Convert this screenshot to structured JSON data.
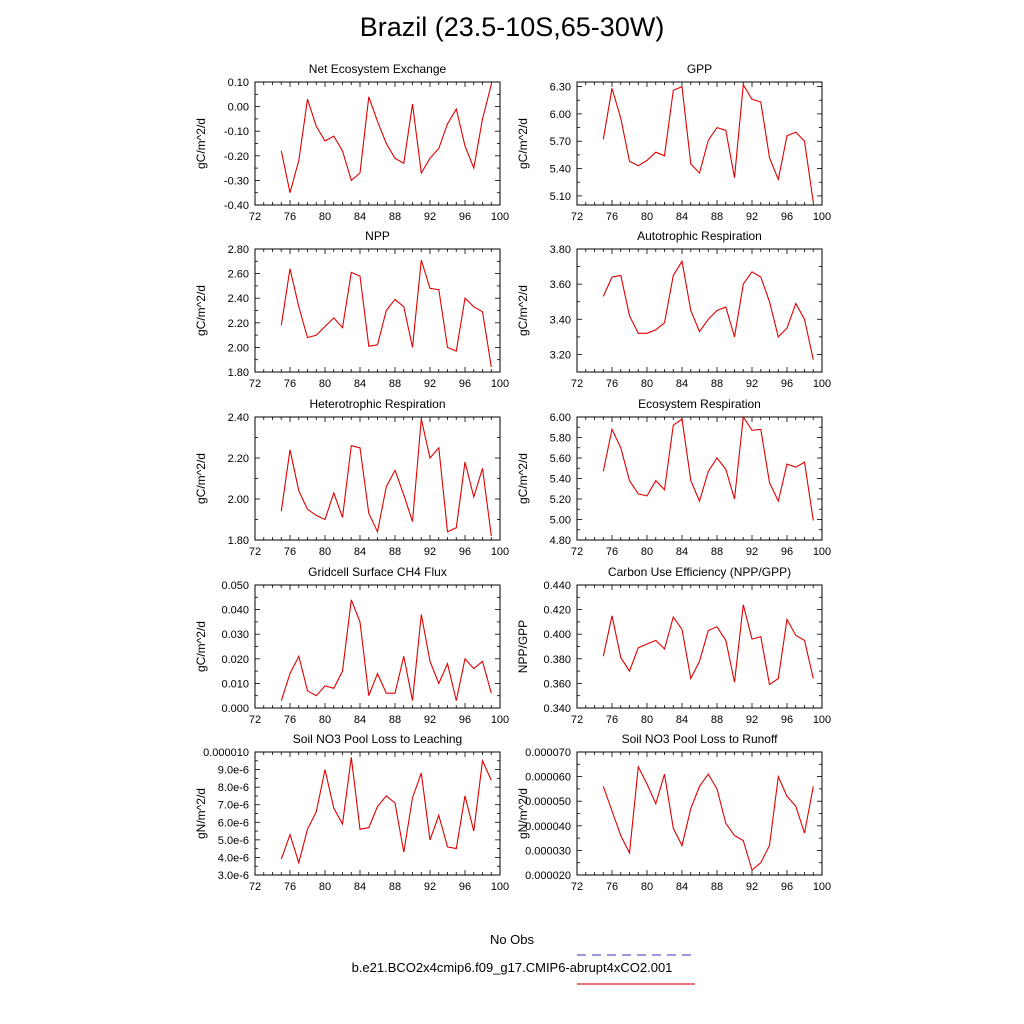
{
  "title": "Brazil (23.5-10S,65-30W)",
  "legend": {
    "entries": [
      {
        "label": "No Obs",
        "color": "#5a5ac8",
        "dash": true
      },
      {
        "label": "b.e21.BCO2x4cmip6.f09_g17.CMIP6-abrupt4xCO2.001",
        "color": "#e02020",
        "dash": false
      }
    ]
  },
  "colors": {
    "series": "#e00000",
    "axis": "#000000"
  },
  "chart_data": [
    {
      "type": "line",
      "title": "Net Ecosystem Exchange",
      "ylabel": "gC/m^2/d",
      "xlim": [
        72,
        100
      ],
      "xticks": [
        72,
        76,
        80,
        84,
        88,
        92,
        96,
        100
      ],
      "xtick_labels": [
        "72",
        "76",
        "80",
        "84",
        "88",
        "92",
        "96",
        "100"
      ],
      "ylim": [
        -0.4,
        0.1
      ],
      "yticks": [
        -0.4,
        -0.3,
        -0.2,
        -0.1,
        0.0,
        0.1
      ],
      "ytick_labels": [
        "-0.40",
        "-0.30",
        "-0.20",
        "-0.10",
        "0.00",
        "0.10"
      ],
      "x": [
        75,
        76,
        77,
        78,
        79,
        80,
        81,
        82,
        83,
        84,
        85,
        86,
        87,
        88,
        89,
        90,
        91,
        92,
        93,
        94,
        95,
        96,
        97,
        98,
        99
      ],
      "y": [
        -0.18,
        -0.35,
        -0.22,
        0.03,
        -0.08,
        -0.14,
        -0.12,
        -0.18,
        -0.3,
        -0.27,
        0.04,
        -0.06,
        -0.15,
        -0.21,
        -0.23,
        0.01,
        -0.27,
        -0.21,
        -0.17,
        -0.07,
        -0.01,
        -0.16,
        -0.25,
        -0.05,
        0.09
      ]
    },
    {
      "type": "line",
      "title": "GPP",
      "ylabel": "gC/m^2/d",
      "xlim": [
        72,
        100
      ],
      "xticks": [
        72,
        76,
        80,
        84,
        88,
        92,
        96,
        100
      ],
      "xtick_labels": [
        "72",
        "76",
        "80",
        "84",
        "88",
        "92",
        "96",
        "100"
      ],
      "ylim": [
        5.0,
        6.35
      ],
      "yticks": [
        5.1,
        5.4,
        5.7,
        6.0,
        6.3
      ],
      "ytick_labels": [
        "5.10",
        "5.40",
        "5.70",
        "6.00",
        "6.30"
      ],
      "x": [
        75,
        76,
        77,
        78,
        79,
        80,
        81,
        82,
        83,
        84,
        85,
        86,
        87,
        88,
        89,
        90,
        91,
        92,
        93,
        94,
        95,
        96,
        97,
        98,
        99
      ],
      "y": [
        5.72,
        6.28,
        5.95,
        5.48,
        5.43,
        5.49,
        5.58,
        5.54,
        6.26,
        6.3,
        5.45,
        5.35,
        5.71,
        5.85,
        5.82,
        5.3,
        6.32,
        6.16,
        6.13,
        5.52,
        5.28,
        5.76,
        5.8,
        5.7,
        5.03
      ]
    },
    {
      "type": "line",
      "title": "NPP",
      "ylabel": "gC/m^2/d",
      "xlim": [
        72,
        100
      ],
      "xticks": [
        72,
        76,
        80,
        84,
        88,
        92,
        96,
        100
      ],
      "xtick_labels": [
        "72",
        "76",
        "80",
        "84",
        "88",
        "92",
        "96",
        "100"
      ],
      "ylim": [
        1.8,
        2.8
      ],
      "yticks": [
        1.8,
        2.0,
        2.2,
        2.4,
        2.6,
        2.8
      ],
      "ytick_labels": [
        "1.80",
        "2.00",
        "2.20",
        "2.40",
        "2.60",
        "2.80"
      ],
      "x": [
        75,
        76,
        77,
        78,
        79,
        80,
        81,
        82,
        83,
        84,
        85,
        86,
        87,
        88,
        89,
        90,
        91,
        92,
        93,
        94,
        95,
        96,
        97,
        98,
        99
      ],
      "y": [
        2.18,
        2.64,
        2.33,
        2.08,
        2.1,
        2.17,
        2.24,
        2.16,
        2.61,
        2.58,
        2.01,
        2.02,
        2.3,
        2.39,
        2.33,
        2.0,
        2.71,
        2.48,
        2.47,
        2.0,
        1.97,
        2.4,
        2.33,
        2.29,
        1.84
      ]
    },
    {
      "type": "line",
      "title": "Autotrophic Respiration",
      "ylabel": "gC/m^2/d",
      "xlim": [
        72,
        100
      ],
      "xticks": [
        72,
        76,
        80,
        84,
        88,
        92,
        96,
        100
      ],
      "xtick_labels": [
        "72",
        "76",
        "80",
        "84",
        "88",
        "92",
        "96",
        "100"
      ],
      "ylim": [
        3.1,
        3.8
      ],
      "yticks": [
        3.2,
        3.4,
        3.6,
        3.8
      ],
      "ytick_labels": [
        "3.20",
        "3.40",
        "3.60",
        "3.80"
      ],
      "x": [
        75,
        76,
        77,
        78,
        79,
        80,
        81,
        82,
        83,
        84,
        85,
        86,
        87,
        88,
        89,
        90,
        91,
        92,
        93,
        94,
        95,
        96,
        97,
        98,
        99
      ],
      "y": [
        3.53,
        3.64,
        3.65,
        3.42,
        3.32,
        3.32,
        3.34,
        3.38,
        3.65,
        3.73,
        3.45,
        3.33,
        3.4,
        3.45,
        3.47,
        3.3,
        3.6,
        3.67,
        3.64,
        3.5,
        3.3,
        3.35,
        3.49,
        3.4,
        3.17
      ]
    },
    {
      "type": "line",
      "title": "Heterotrophic Respiration",
      "ylabel": "gC/m^2/d",
      "xlim": [
        72,
        100
      ],
      "xticks": [
        72,
        76,
        80,
        84,
        88,
        92,
        96,
        100
      ],
      "xtick_labels": [
        "72",
        "76",
        "80",
        "84",
        "88",
        "92",
        "96",
        "100"
      ],
      "ylim": [
        1.8,
        2.4
      ],
      "yticks": [
        1.8,
        2.0,
        2.2,
        2.4
      ],
      "ytick_labels": [
        "1.80",
        "2.00",
        "2.20",
        "2.40"
      ],
      "x": [
        75,
        76,
        77,
        78,
        79,
        80,
        81,
        82,
        83,
        84,
        85,
        86,
        87,
        88,
        89,
        90,
        91,
        92,
        93,
        94,
        95,
        96,
        97,
        98,
        99
      ],
      "y": [
        1.94,
        2.24,
        2.04,
        1.95,
        1.92,
        1.9,
        2.03,
        1.91,
        2.26,
        2.25,
        1.93,
        1.84,
        2.06,
        2.14,
        2.02,
        1.89,
        2.39,
        2.2,
        2.25,
        1.84,
        1.86,
        2.18,
        2.01,
        2.15,
        1.82
      ]
    },
    {
      "type": "line",
      "title": "Ecosystem Respiration",
      "ylabel": "gC/m^2/d",
      "xlim": [
        72,
        100
      ],
      "xticks": [
        72,
        76,
        80,
        84,
        88,
        92,
        96,
        100
      ],
      "xtick_labels": [
        "72",
        "76",
        "80",
        "84",
        "88",
        "92",
        "96",
        "100"
      ],
      "ylim": [
        4.8,
        6.0
      ],
      "yticks": [
        4.8,
        5.0,
        5.2,
        5.4,
        5.6,
        5.8,
        6.0
      ],
      "ytick_labels": [
        "4.80",
        "5.00",
        "5.20",
        "5.40",
        "5.60",
        "5.80",
        "6.00"
      ],
      "x": [
        75,
        76,
        77,
        78,
        79,
        80,
        81,
        82,
        83,
        84,
        85,
        86,
        87,
        88,
        89,
        90,
        91,
        92,
        93,
        94,
        95,
        96,
        97,
        98,
        99
      ],
      "y": [
        5.47,
        5.88,
        5.7,
        5.38,
        5.25,
        5.23,
        5.38,
        5.29,
        5.92,
        5.98,
        5.38,
        5.18,
        5.47,
        5.6,
        5.49,
        5.2,
        6.0,
        5.87,
        5.88,
        5.36,
        5.18,
        5.54,
        5.51,
        5.56,
        4.99
      ]
    },
    {
      "type": "line",
      "title": "Gridcell Surface CH4 Flux",
      "ylabel": "gC/m^2/d",
      "xlim": [
        72,
        100
      ],
      "xticks": [
        72,
        76,
        80,
        84,
        88,
        92,
        96,
        100
      ],
      "xtick_labels": [
        "72",
        "76",
        "80",
        "84",
        "88",
        "92",
        "96",
        "100"
      ],
      "ylim": [
        0.0,
        0.05
      ],
      "yticks": [
        0.0,
        0.01,
        0.02,
        0.03,
        0.04,
        0.05
      ],
      "ytick_labels": [
        "0.000",
        "0.010",
        "0.020",
        "0.030",
        "0.040",
        "0.050"
      ],
      "x": [
        75,
        76,
        77,
        78,
        79,
        80,
        81,
        82,
        83,
        84,
        85,
        86,
        87,
        88,
        89,
        90,
        91,
        92,
        93,
        94,
        95,
        96,
        97,
        98,
        99
      ],
      "y": [
        0.003,
        0.014,
        0.021,
        0.007,
        0.005,
        0.009,
        0.008,
        0.015,
        0.044,
        0.035,
        0.005,
        0.014,
        0.006,
        0.006,
        0.021,
        0.003,
        0.038,
        0.019,
        0.01,
        0.018,
        0.003,
        0.02,
        0.016,
        0.019,
        0.006
      ]
    },
    {
      "type": "line",
      "title": "Carbon Use Efficiency (NPP/GPP)",
      "ylabel": "NPP/GPP",
      "xlim": [
        72,
        100
      ],
      "xticks": [
        72,
        76,
        80,
        84,
        88,
        92,
        96,
        100
      ],
      "xtick_labels": [
        "72",
        "76",
        "80",
        "84",
        "88",
        "92",
        "96",
        "100"
      ],
      "ylim": [
        0.34,
        0.44
      ],
      "yticks": [
        0.34,
        0.36,
        0.38,
        0.4,
        0.42,
        0.44
      ],
      "ytick_labels": [
        "0.340",
        "0.360",
        "0.380",
        "0.400",
        "0.420",
        "0.440"
      ],
      "x": [
        75,
        76,
        77,
        78,
        79,
        80,
        81,
        82,
        83,
        84,
        85,
        86,
        87,
        88,
        89,
        90,
        91,
        92,
        93,
        94,
        95,
        96,
        97,
        98,
        99
      ],
      "y": [
        0.382,
        0.415,
        0.381,
        0.37,
        0.389,
        0.392,
        0.395,
        0.388,
        0.414,
        0.404,
        0.364,
        0.378,
        0.403,
        0.406,
        0.395,
        0.361,
        0.424,
        0.396,
        0.398,
        0.359,
        0.364,
        0.412,
        0.399,
        0.395,
        0.364
      ]
    },
    {
      "type": "line",
      "title": "Soil NO3 Pool Loss to Leaching",
      "ylabel": "gN/m^2/d",
      "xlim": [
        72,
        100
      ],
      "xticks": [
        72,
        76,
        80,
        84,
        88,
        92,
        96,
        100
      ],
      "xtick_labels": [
        "72",
        "76",
        "80",
        "84",
        "88",
        "92",
        "96",
        "100"
      ],
      "ylim": [
        3e-06,
        1e-05
      ],
      "yticks": [
        3e-06,
        4e-06,
        5e-06,
        6e-06,
        7e-06,
        8e-06,
        9e-06,
        1e-05
      ],
      "ytick_labels": [
        "3.0e-6",
        "4.0e-6",
        "5.0e-6",
        "6.0e-6",
        "7.0e-6",
        "8.0e-6",
        "9.0e-6",
        "0.000010"
      ],
      "x": [
        75,
        76,
        77,
        78,
        79,
        80,
        81,
        82,
        83,
        84,
        85,
        86,
        87,
        88,
        89,
        90,
        91,
        92,
        93,
        94,
        95,
        96,
        97,
        98,
        99
      ],
      "y": [
        3.9e-06,
        5.3e-06,
        3.7e-06,
        5.6e-06,
        6.6e-06,
        9e-06,
        6.8e-06,
        5.9e-06,
        9.7e-06,
        5.6e-06,
        5.7e-06,
        6.9e-06,
        7.5e-06,
        7.1e-06,
        4.3e-06,
        7.4e-06,
        8.8e-06,
        5e-06,
        6.4e-06,
        4.6e-06,
        4.5e-06,
        7.5e-06,
        5.5e-06,
        9.5e-06,
        8.4e-06
      ]
    },
    {
      "type": "line",
      "title": "Soil NO3 Pool Loss to Runoff",
      "ylabel": "gN/m^2/d",
      "xlim": [
        72,
        100
      ],
      "xticks": [
        72,
        76,
        80,
        84,
        88,
        92,
        96,
        100
      ],
      "xtick_labels": [
        "72",
        "76",
        "80",
        "84",
        "88",
        "92",
        "96",
        "100"
      ],
      "ylim": [
        2e-05,
        7e-05
      ],
      "yticks": [
        2e-05,
        3e-05,
        4e-05,
        5e-05,
        6e-05,
        7e-05
      ],
      "ytick_labels": [
        "0.000020",
        "0.000030",
        "0.000040",
        "0.000050",
        "0.000060",
        "0.000070"
      ],
      "x": [
        75,
        76,
        77,
        78,
        79,
        80,
        81,
        82,
        83,
        84,
        85,
        86,
        87,
        88,
        89,
        90,
        91,
        92,
        93,
        94,
        95,
        96,
        97,
        98,
        99
      ],
      "y": [
        5.6e-05,
        4.6e-05,
        3.6e-05,
        2.9e-05,
        6.4e-05,
        5.7e-05,
        4.9e-05,
        6.1e-05,
        3.9e-05,
        3.2e-05,
        4.7e-05,
        5.6e-05,
        6.1e-05,
        5.5e-05,
        4.1e-05,
        3.6e-05,
        3.4e-05,
        2.2e-05,
        2.5e-05,
        3.2e-05,
        6e-05,
        5.2e-05,
        4.8e-05,
        3.7e-05,
        5.6e-05
      ]
    }
  ]
}
